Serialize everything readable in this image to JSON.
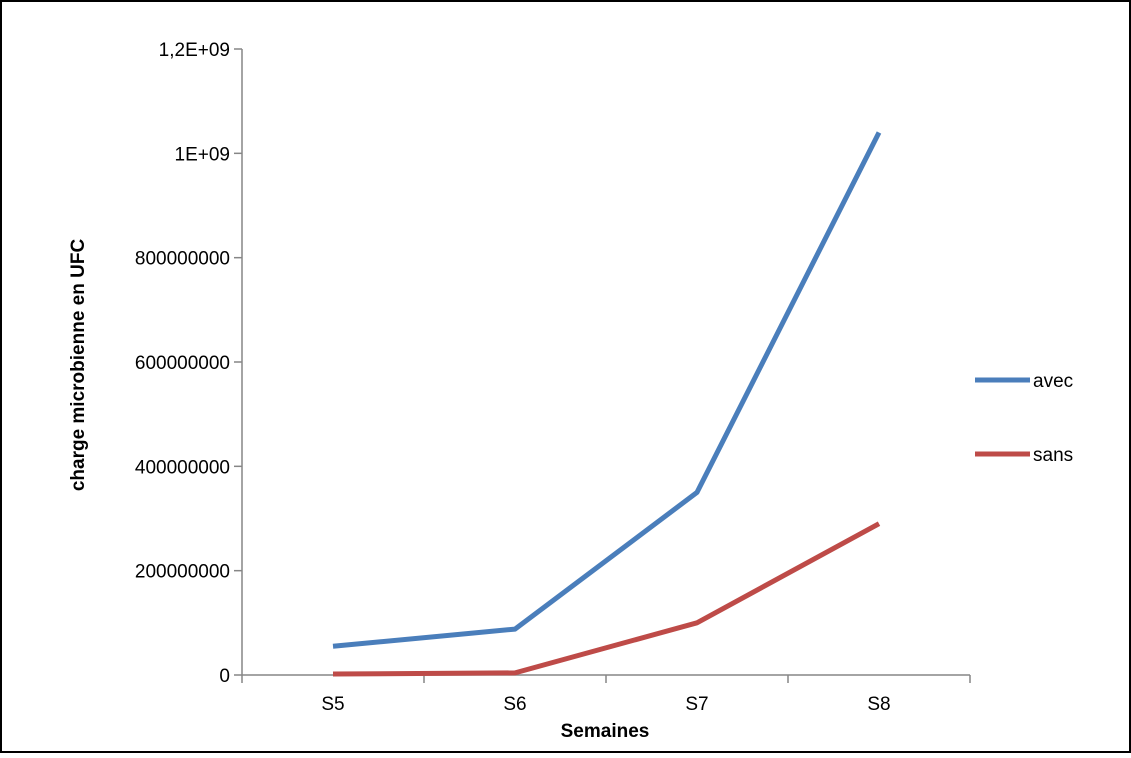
{
  "chart_data": {
    "type": "line",
    "categories": [
      "S5",
      "S6",
      "S7",
      "S8"
    ],
    "series": [
      {
        "name": "avec",
        "color": "#4a7ebb",
        "values": [
          55000000,
          88000000,
          350000000,
          1040000000
        ]
      },
      {
        "name": "sans",
        "color": "#be4b48",
        "values": [
          2000000,
          4000000,
          100000000,
          290000000
        ]
      }
    ],
    "title": "",
    "xlabel": "Semaines",
    "ylabel": "charge microbienne en UFC",
    "ylim": [
      0,
      1200000000
    ],
    "yticks": [
      {
        "value": 0,
        "label": "0"
      },
      {
        "value": 200000000,
        "label": "200000000"
      },
      {
        "value": 400000000,
        "label": "400000000"
      },
      {
        "value": 600000000,
        "label": "600000000"
      },
      {
        "value": 800000000,
        "label": "800000000"
      },
      {
        "value": 1000000000,
        "label": "1E+09"
      },
      {
        "value": 1200000000,
        "label": "1,2E+09"
      }
    ],
    "grid": false,
    "legend": "right"
  }
}
